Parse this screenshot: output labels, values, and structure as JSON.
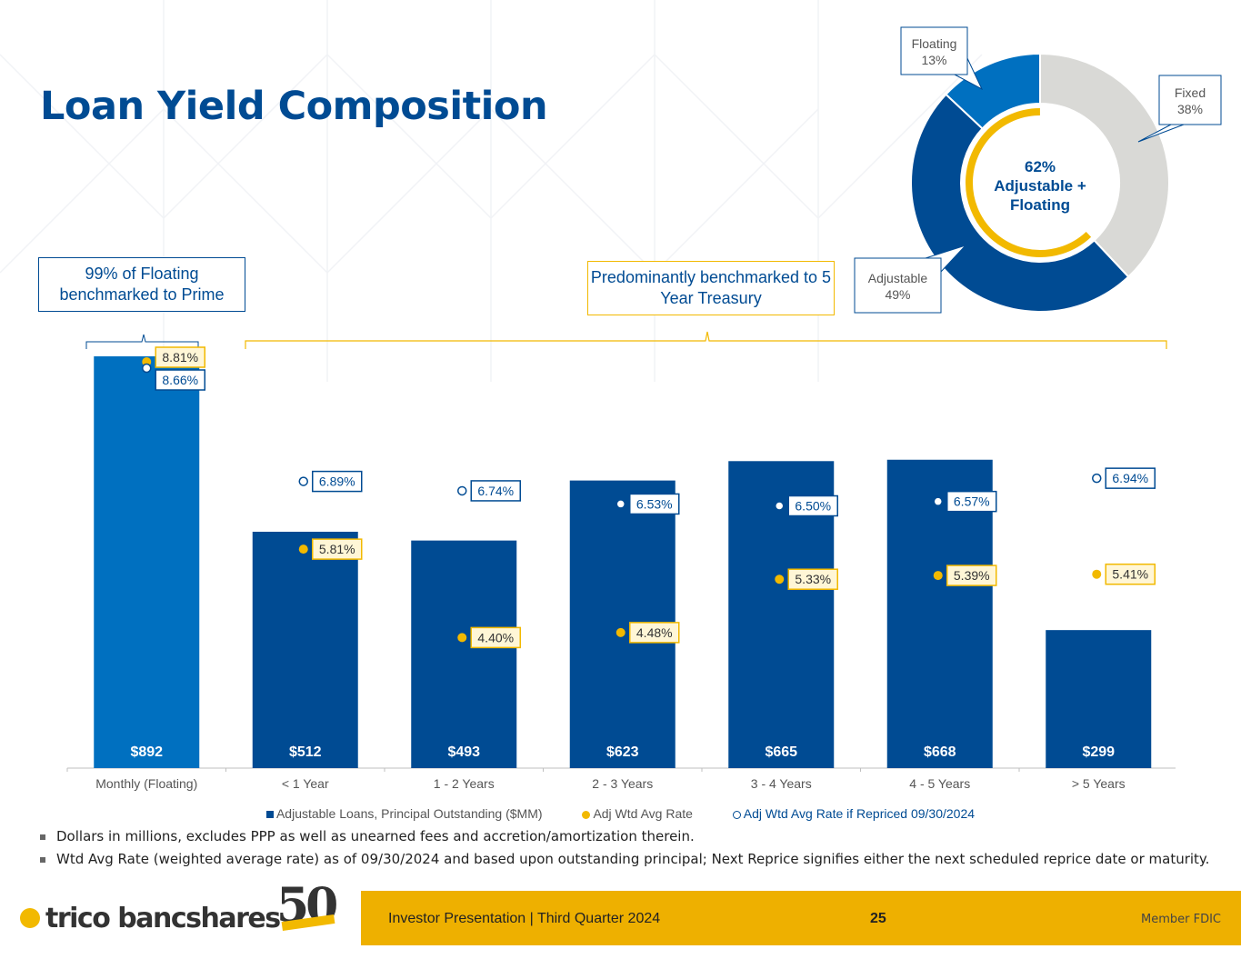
{
  "title": "Loan Yield Composition",
  "callouts": {
    "floating": "99% of Floating benchmarked to Prime",
    "treasury": "Predominantly benchmarked to 5 Year Treasury"
  },
  "chart_data": [
    {
      "type": "bar",
      "categories": [
        "Monthly (Floating)",
        "< 1 Year",
        "1 - 2 Years",
        "2 - 3 Years",
        "3 - 4 Years",
        "4 - 5 Years",
        "> 5 Years"
      ],
      "series": [
        {
          "name": "Adjustable Loans, Principal Outstanding ($MM)",
          "values": [
            892,
            512,
            493,
            623,
            665,
            668,
            299
          ],
          "labels": [
            "$892",
            "$512",
            "$493",
            "$623",
            "$665",
            "$668",
            "$299"
          ],
          "color": "#004b93"
        },
        {
          "name": "Adj Wtd Avg Rate",
          "values": [
            8.81,
            5.81,
            4.4,
            4.48,
            5.33,
            5.39,
            5.41
          ],
          "labels": [
            "8.81%",
            "5.81%",
            "4.40%",
            "4.48%",
            "5.33%",
            "5.39%",
            "5.41%"
          ],
          "color": "#f2b900"
        },
        {
          "name": "Adj Wtd Avg Rate if Repriced 09/30/2024",
          "values": [
            8.66,
            6.89,
            6.74,
            6.53,
            6.5,
            6.57,
            6.94
          ],
          "labels": [
            "8.66%",
            "6.89%",
            "6.74%",
            "6.53%",
            "6.50%",
            "6.57%",
            "6.94%"
          ],
          "color": "#004b93"
        }
      ],
      "highlight_color": "#0070c0",
      "ylim": [
        0,
        900
      ]
    },
    {
      "type": "pie",
      "slices": [
        {
          "label": "Fixed",
          "value": 38,
          "text": "38%",
          "color": "#d9d9d6"
        },
        {
          "label": "Adjustable",
          "value": 49,
          "text": "49%",
          "color": "#004b93"
        },
        {
          "label": "Floating",
          "value": 13,
          "text": "13%",
          "color": "#0070c0"
        }
      ],
      "inner_ring": {
        "value": 62,
        "color": "#f2b900"
      },
      "center_label": [
        "62%",
        "Adjustable +",
        "Floating"
      ]
    }
  ],
  "notes": [
    "Dollars in millions, excludes PPP as well as unearned fees and accretion/amortization therein.",
    "Wtd Avg Rate (weighted average rate) as of 09/30/2024 and based upon outstanding principal; Next Reprice signifies either the next scheduled reprice date or maturity."
  ],
  "footer": {
    "brand": "trico bancshares",
    "anniversary": "50",
    "presentation": "Investor Presentation  |  Third Quarter 2024",
    "page": "25",
    "fdic": "Member FDIC"
  }
}
